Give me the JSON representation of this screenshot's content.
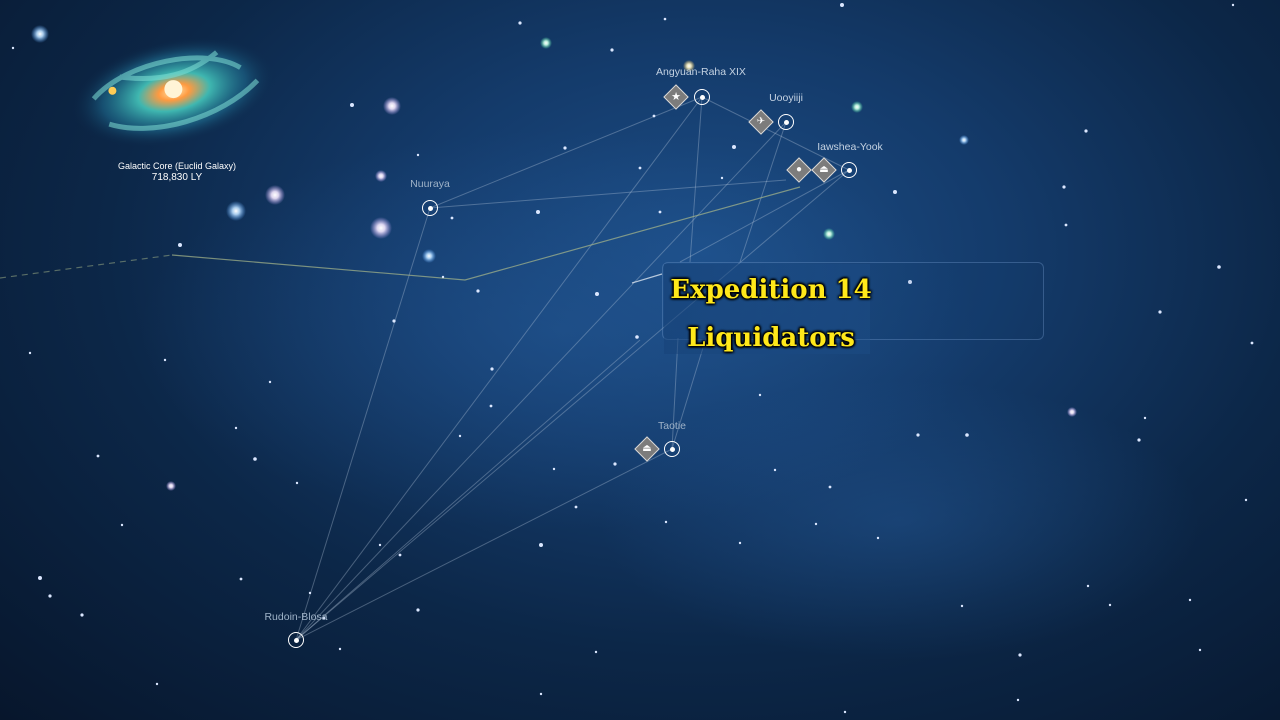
{
  "galaxy": {
    "name": "Galactic Core (Euclid Galaxy)",
    "distance": "718,830 LY"
  },
  "systems": [
    {
      "id": "angyuan",
      "name": "Angyuan-Raha XIX",
      "icons": [
        "star-icon"
      ]
    },
    {
      "id": "uooyiiji",
      "name": "Uooyiiji",
      "icons": [
        "freighter-icon"
      ]
    },
    {
      "id": "iawshea",
      "name": "Iawshea-Yook",
      "icons": [
        "traveller-icon",
        "ufo-icon"
      ]
    },
    {
      "id": "nuuraya",
      "name": "Nuuraya",
      "icons": []
    },
    {
      "id": "taotie",
      "name": "Taotie",
      "icons": [
        "ufo-icon"
      ]
    },
    {
      "id": "rudoin",
      "name": "Rudoin-Blosa",
      "icons": []
    }
  ],
  "caption": {
    "line1": "Expedition 14",
    "line2": "Liquidators"
  },
  "colors": {
    "caption_text": "#ffe81a",
    "route_line": "#a8b88a",
    "node_stroke": "#ffffff"
  }
}
